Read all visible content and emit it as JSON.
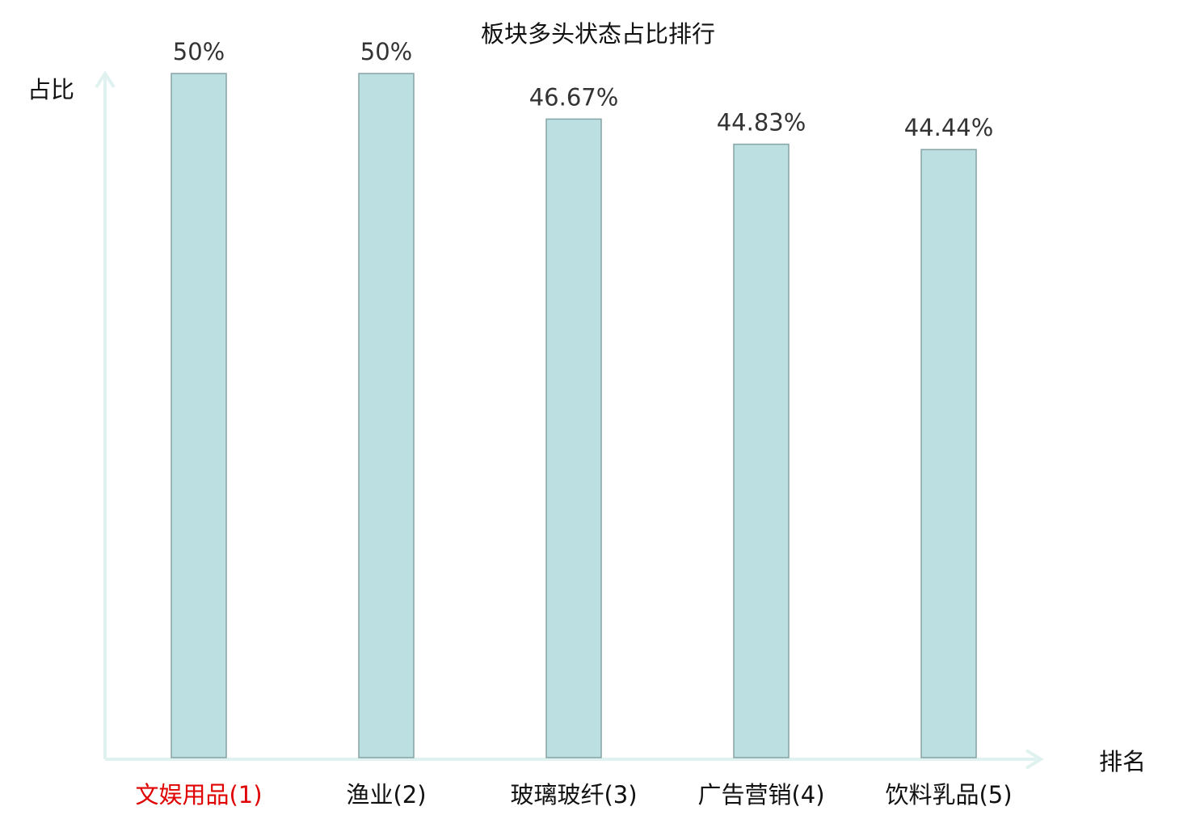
{
  "chart_data": {
    "type": "bar",
    "title": "板块多头状态占比排行",
    "ylabel": "占比",
    "xlabel": "排名",
    "categories": [
      "文娱用品(1)",
      "渔业(2)",
      "玻璃玻纤(3)",
      "广告营销(4)",
      "饮料乳品(5)"
    ],
    "values": [
      50,
      50,
      46.67,
      44.83,
      44.44
    ],
    "value_labels": [
      "50%",
      "50%",
      "46.67%",
      "44.83%",
      "44.44%"
    ],
    "ylim": [
      0,
      50
    ],
    "grid": false,
    "legend": "none",
    "colors": {
      "bar_fill": "#bce0e2",
      "bar_stroke": "#86a3a5",
      "axis": "#dff2ef",
      "highlight_label": "#e00000",
      "label": "#111111",
      "value_label": "#333333"
    },
    "highlight_index": 0
  }
}
